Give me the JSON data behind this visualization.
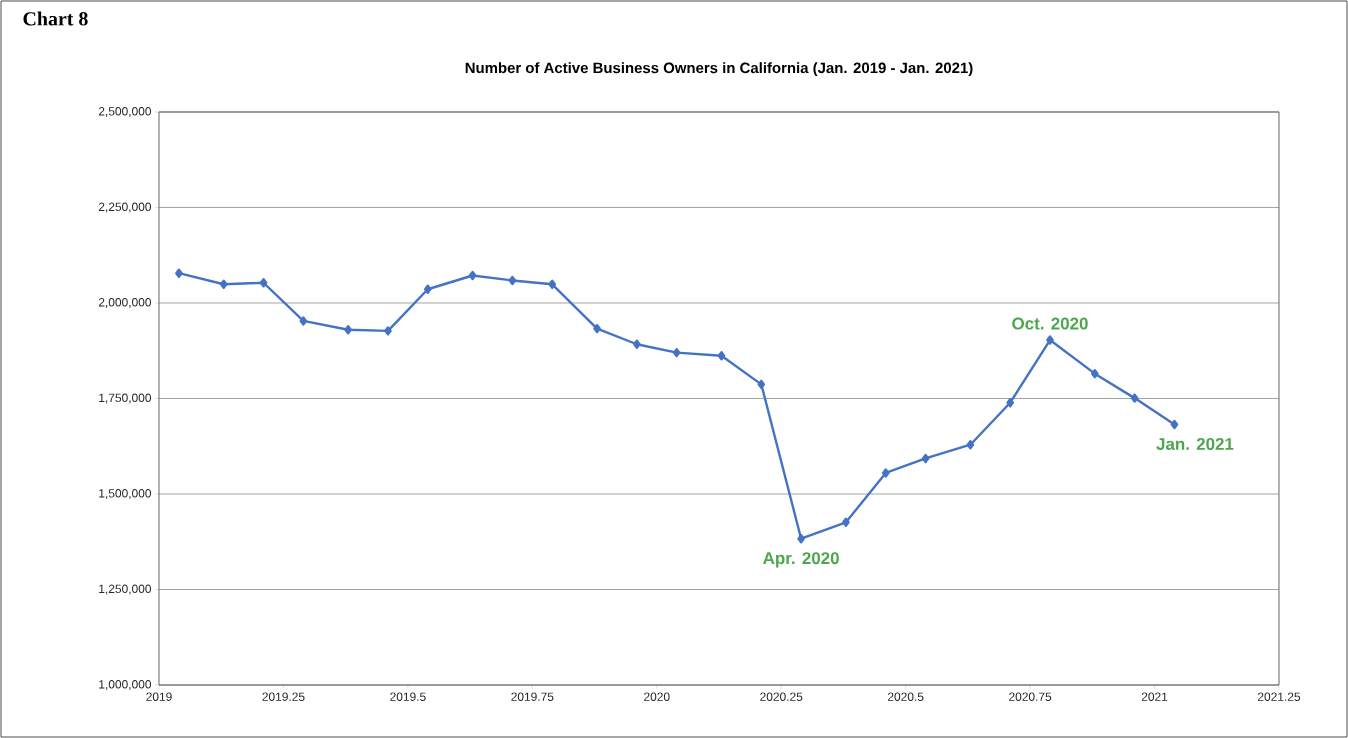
{
  "chart_data": {
    "type": "line",
    "title": "Number of Active Business Owners in California (Jan. 2019 - Jan. 2021)",
    "x": [
      2019.04,
      2019.13,
      2019.21,
      2019.29,
      2019.38,
      2019.46,
      2019.54,
      2019.63,
      2019.71,
      2019.79,
      2019.88,
      2019.96,
      2020.04,
      2020.13,
      2020.21,
      2020.29,
      2020.38,
      2020.46,
      2020.54,
      2020.63,
      2020.71,
      2020.79,
      2020.88,
      2020.96,
      2021.04
    ],
    "series": [
      {
        "color": "#4472c4",
        "values": [
          2078000,
          2049000,
          2053000,
          1953000,
          1930000,
          1927000,
          2036000,
          2072000,
          2059000,
          2049000,
          1933000,
          1892000,
          1870000,
          1862000,
          1787000,
          1383000,
          1426000,
          1555000,
          1593000,
          1629000,
          1739000,
          1903000,
          1815000,
          1751000,
          1682000
        ]
      }
    ],
    "xlim": [
      2019,
      2021.25
    ],
    "xticks": [
      2019,
      2019.25,
      2019.5,
      2019.75,
      2020,
      2020.25,
      2020.5,
      2020.75,
      2021,
      2021.25
    ],
    "ylim": [
      1000000,
      2500000
    ],
    "yticks": [
      {
        "value": 1000000,
        "label": "1,000,000"
      },
      {
        "value": 1250000,
        "label": "1,250,000"
      },
      {
        "value": 1500000,
        "label": "1,500,000"
      },
      {
        "value": 1750000,
        "label": "1,750,000"
      },
      {
        "value": 2000000,
        "label": "2,000,000"
      },
      {
        "value": 2250000,
        "label": "2,250,000"
      },
      {
        "value": 2500000,
        "label": "2,500,000"
      }
    ],
    "grid": "y",
    "marker": "diamond",
    "line_style": "solid",
    "annotations": [
      "Chart 8",
      {
        "text": "Apr. 2020",
        "x": 2020.29,
        "y": 1383000
      },
      {
        "text": "Oct. 2020",
        "x": 2020.79,
        "y": 1903000
      },
      {
        "text": "Jan. 2021",
        "x": 2021.04,
        "y": 1682000
      }
    ]
  }
}
